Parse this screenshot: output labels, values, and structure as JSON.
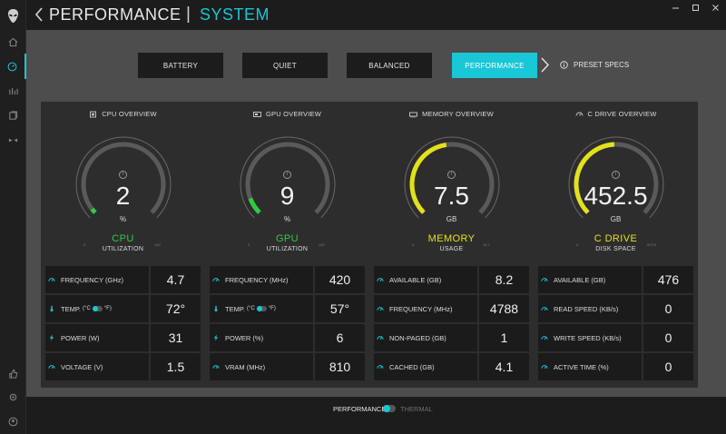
{
  "header": {
    "title": "PERFORMANCE",
    "separator": "|",
    "subtitle": "SYSTEM"
  },
  "modes": [
    {
      "label": "BATTERY",
      "active": false
    },
    {
      "label": "QUIET",
      "active": false
    },
    {
      "label": "BALANCED",
      "active": false
    },
    {
      "label": "PERFORMANCE",
      "active": true
    }
  ],
  "preset_label": "PRESET SPECS",
  "info_glyph": "i",
  "colors": {
    "accent": "#19c7d6",
    "gpu_cpu": "#2ecc40",
    "mem_disk": "#e3e11a",
    "track": "#5a5a5a"
  },
  "sections": [
    {
      "header": "CPU OVERVIEW",
      "icon": "cpu-icon",
      "gauge": {
        "value": "2",
        "unit": "%",
        "label": "CPU",
        "sub": "UTILIZATION",
        "fill": 0.02,
        "min": "0",
        "max": "100"
      },
      "rows": [
        {
          "icon": "gauge-icon",
          "label": "FREQUENCY (GHz)",
          "value": "4.7"
        },
        {
          "icon": "thermometer-icon",
          "label": "TEMP.",
          "unit_c": "(°C",
          "unit_f": "°F)",
          "value": "72°"
        },
        {
          "icon": "bolt-icon",
          "label": "POWER (W)",
          "value": "31"
        },
        {
          "icon": "gauge-icon",
          "label": "VOLTAGE (V)",
          "value": "1.5"
        }
      ]
    },
    {
      "header": "GPU OVERVIEW",
      "icon": "gpu-icon",
      "gauge": {
        "value": "9",
        "unit": "%",
        "label": "GPU",
        "sub": "UTILIZATION",
        "fill": 0.09,
        "min": "0",
        "max": "100"
      },
      "rows": [
        {
          "icon": "gauge-icon",
          "label": "FREQUENCY (MHz)",
          "value": "420"
        },
        {
          "icon": "thermometer-icon",
          "label": "TEMP.",
          "unit_c": "(°C",
          "unit_f": "°F)",
          "value": "57°"
        },
        {
          "icon": "bolt-icon",
          "label": "POWER (%)",
          "value": "6"
        },
        {
          "icon": "gauge-icon",
          "label": "VRAM (MHz)",
          "value": "810"
        }
      ]
    },
    {
      "header": "MEMORY OVERVIEW",
      "icon": "memory-icon",
      "gauge": {
        "value": "7.5",
        "unit": "GB",
        "label": "MEMORY",
        "sub": "USAGE",
        "fill": 0.47,
        "min": "0",
        "max": "15.7"
      },
      "rows": [
        {
          "icon": "gauge-icon",
          "label": "AVAILABLE (GB)",
          "value": "8.2"
        },
        {
          "icon": "gauge-icon",
          "label": "FREQUENCY (MHz)",
          "value": "4788"
        },
        {
          "icon": "gauge-icon",
          "label": "NON-PAGED (GB)",
          "value": "1"
        },
        {
          "icon": "gauge-icon",
          "label": "CACHED (GB)",
          "value": "4.1"
        }
      ]
    },
    {
      "header": "C DRIVE OVERVIEW",
      "icon": "drive-icon",
      "gauge": {
        "value": "452.5",
        "unit": "GB",
        "label": "C DRIVE",
        "sub": "DISK SPACE",
        "fill": 0.49,
        "min": "0",
        "max": "929.5"
      },
      "rows": [
        {
          "icon": "gauge-icon",
          "label": "AVAILABLE (GB)",
          "value": "476"
        },
        {
          "icon": "gauge-icon",
          "label": "READ SPEED (KB/s)",
          "value": "0"
        },
        {
          "icon": "gauge-icon",
          "label": "WRITE SPEED (KB/s)",
          "value": "0"
        },
        {
          "icon": "gauge-icon",
          "label": "ACTIVE TIME (%)",
          "value": "0"
        }
      ]
    }
  ],
  "footer": {
    "performance": "PERFORMANCE",
    "thermal": "THERMAL"
  }
}
